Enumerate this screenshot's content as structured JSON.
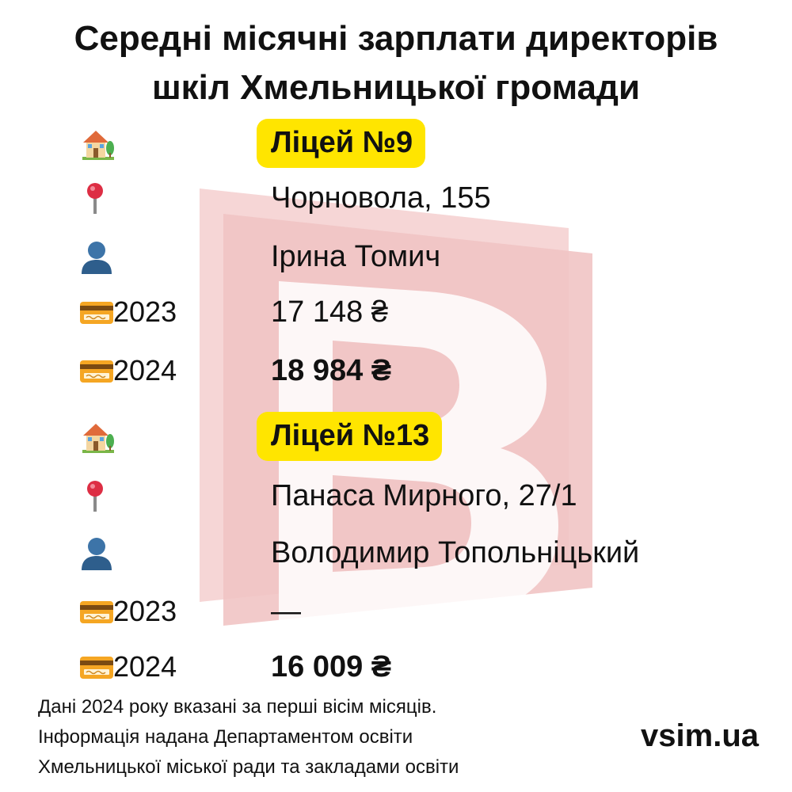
{
  "title": {
    "line1": "Середні місячні зарплати директорів",
    "line2": "шкіл Хмельницької громади"
  },
  "schools": [
    {
      "name": "Ліцей №9",
      "address": "Чорновола, 155",
      "director": "Ірина Томич",
      "salary_2023_label": "2023",
      "salary_2023": "17 148 ₴",
      "salary_2024_label": "2024",
      "salary_2024": "18 984 ₴"
    },
    {
      "name": "Ліцей №13",
      "address": "Панаса Мирного, 27/1",
      "director": "Володимир Топольніцький",
      "salary_2023_label": "2023",
      "salary_2023": "—",
      "salary_2024_label": "2024",
      "salary_2024": "16 009 ₴"
    }
  ],
  "icons": {
    "school": "house-with-garden-icon",
    "address": "round-pushpin-icon",
    "director": "bust-silhouette-icon",
    "salary": "credit-card-icon"
  },
  "footnote": {
    "line1": "Дані 2024 року вказані за перші вісім місяців.",
    "line2": "Інформація надана Департаментом освіти",
    "line3": "Хмельницької міської ради та закладами освіти"
  },
  "brand": "vsim.ua",
  "colors": {
    "highlight": "#FFE500",
    "watermark": "#F3C9C9",
    "text": "#111111"
  }
}
